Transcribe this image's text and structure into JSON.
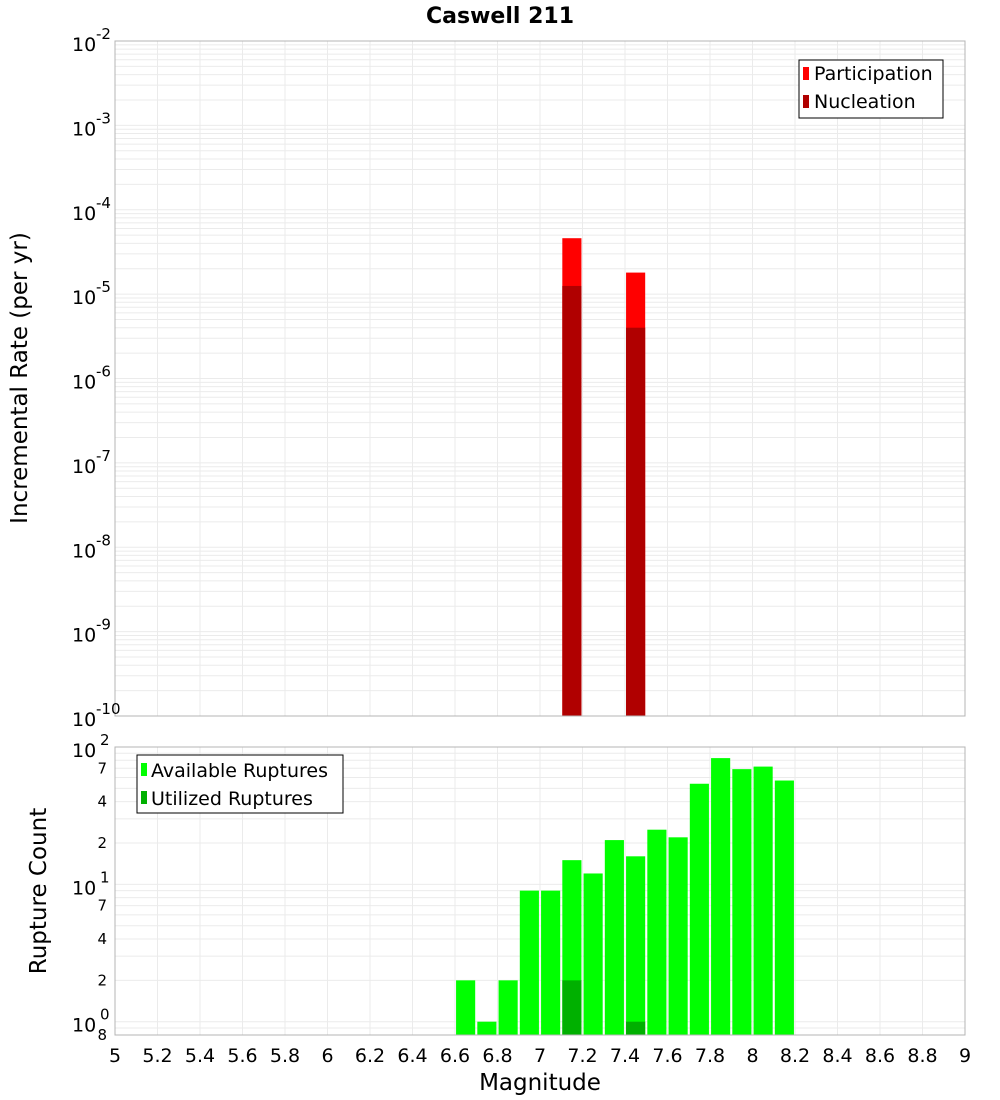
{
  "colors": {
    "participation": "#ff0000",
    "nucleation": "#b00000",
    "available": "#00ff00",
    "utilized": "#00b000",
    "grid": "#ebebeb",
    "frame": "#b4b4b4"
  },
  "chart_data": [
    {
      "type": "bar",
      "title": "Caswell 211",
      "xlabel": "",
      "ylabel": "Incremental Rate (per yr)",
      "xlim": [
        5,
        9
      ],
      "ylim": [
        1e-10,
        0.01
      ],
      "yscale": "log",
      "ytick_exponents": [
        "-10",
        "-9",
        "-8",
        "-7",
        "-6",
        "-5",
        "-4",
        "-3",
        "-2"
      ],
      "ytick_base": "10",
      "grid": true,
      "legend_position": "top-right",
      "bar_width": 0.09,
      "series": [
        {
          "name": "Participation",
          "x": [
            7.15,
            7.45
          ],
          "values": [
            4.6e-05,
            1.8e-05
          ]
        },
        {
          "name": "Nucleation",
          "x": [
            7.15,
            7.45
          ],
          "values": [
            1.25e-05,
            4e-06
          ]
        }
      ]
    },
    {
      "type": "bar",
      "title": "",
      "xlabel": "Magnitude",
      "ylabel": "Rupture Count",
      "xlim": [
        5,
        9
      ],
      "ylim": [
        0.8,
        100
      ],
      "yscale": "log",
      "major_ticks": [
        {
          "value": 1,
          "base": "10",
          "exp": "0"
        },
        {
          "value": 10,
          "base": "10",
          "exp": "1"
        },
        {
          "value": 100,
          "base": "10",
          "exp": "2"
        }
      ],
      "minor_ticks": [
        {
          "value": 0.8,
          "label": "8"
        },
        {
          "value": 2,
          "label": "2"
        },
        {
          "value": 4,
          "label": "4"
        },
        {
          "value": 7,
          "label": "7"
        },
        {
          "value": 20,
          "label": "2"
        },
        {
          "value": 40,
          "label": "4"
        },
        {
          "value": 70,
          "label": "7"
        }
      ],
      "xticks": [
        "5",
        "5.2",
        "5.4",
        "5.6",
        "5.8",
        "6",
        "6.2",
        "6.4",
        "6.6",
        "6.8",
        "7",
        "7.2",
        "7.4",
        "7.6",
        "7.8",
        "8",
        "8.2",
        "8.4",
        "8.6",
        "8.8",
        "9"
      ],
      "grid": true,
      "legend_position": "top-left",
      "bar_width": 0.09,
      "series": [
        {
          "name": "Available Ruptures",
          "x": [
            6.65,
            6.75,
            6.85,
            6.95,
            7.05,
            7.15,
            7.25,
            7.35,
            7.45,
            7.55,
            7.65,
            7.75,
            7.85,
            7.95,
            8.05,
            8.15
          ],
          "values": [
            2,
            1,
            2,
            9,
            9,
            15,
            12,
            21,
            16,
            25,
            22,
            54,
            83,
            69,
            72,
            57
          ]
        },
        {
          "name": "Utilized Ruptures",
          "x": [
            7.15,
            7.45
          ],
          "values": [
            2,
            1
          ]
        }
      ]
    }
  ]
}
